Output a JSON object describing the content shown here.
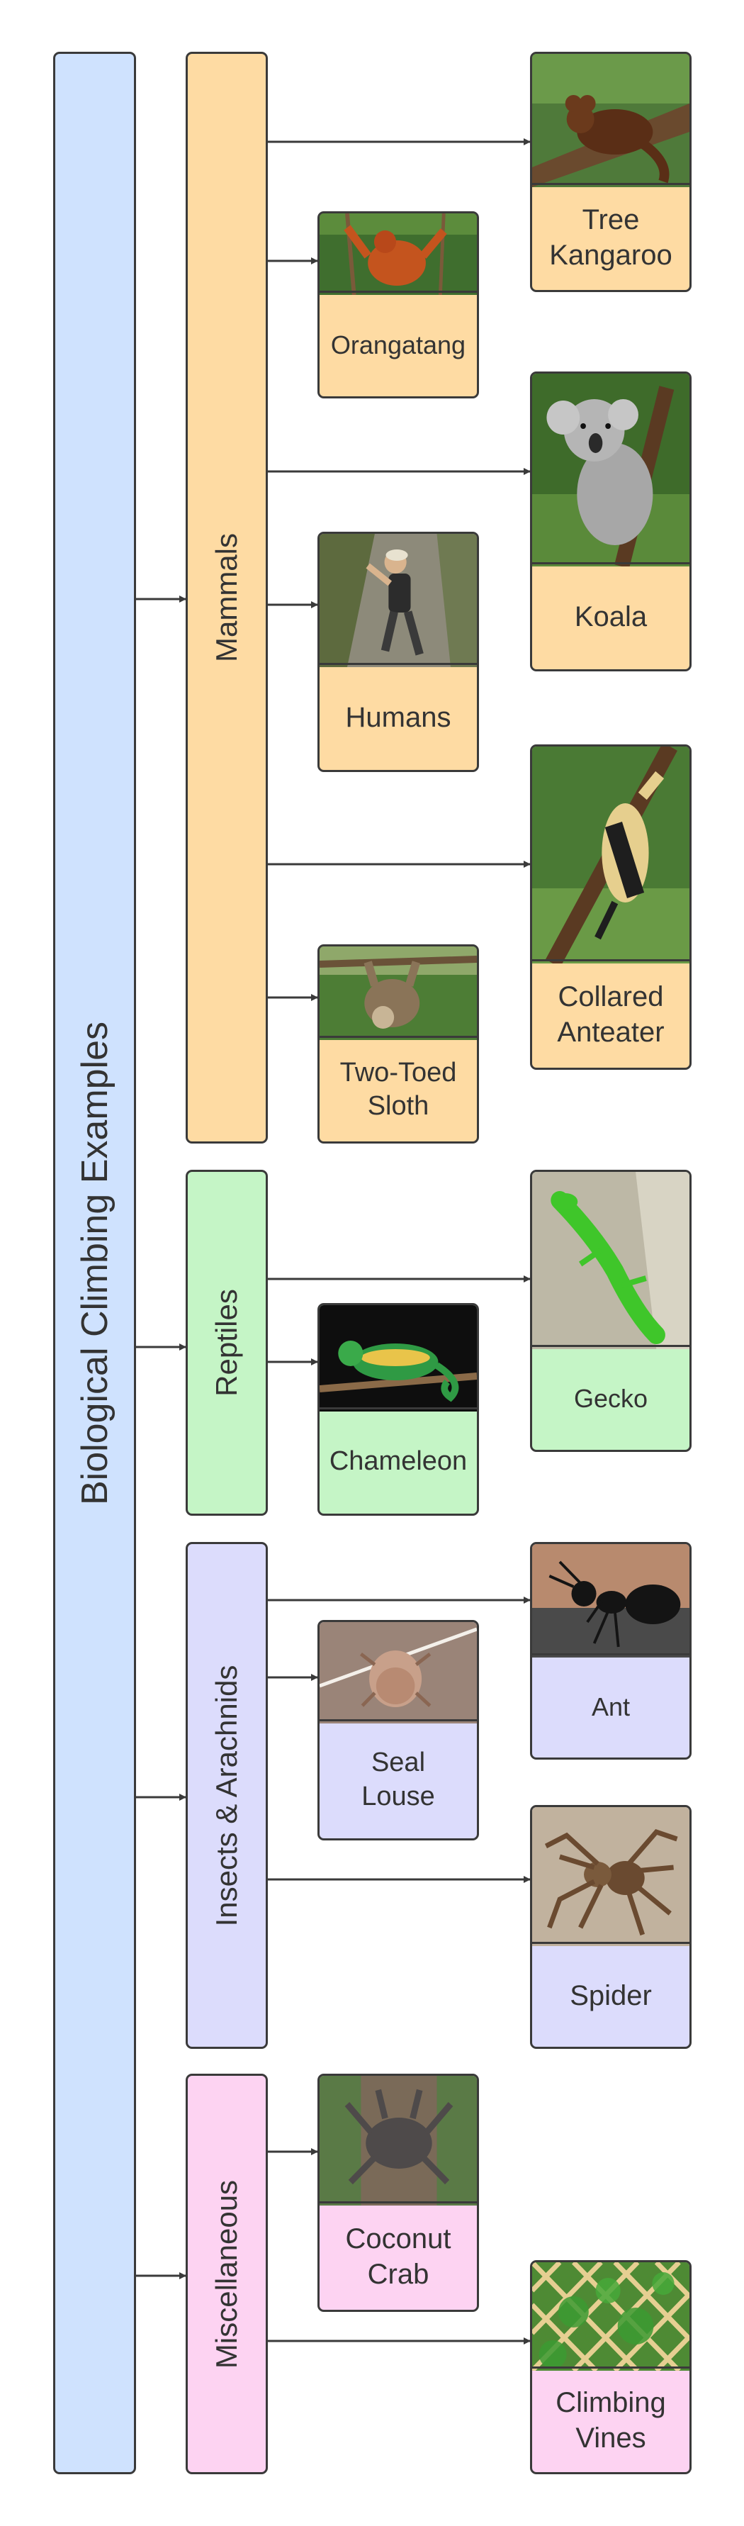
{
  "title": "Biological Climbing Examples",
  "colors": {
    "root": "#cfe2fe",
    "mammals": "#fedba3",
    "reptiles": "#c5f5c6",
    "insects": "#dcdcfc",
    "misc": "#fdd3f2",
    "line": "#3a3a3a"
  },
  "categories": [
    {
      "key": "mammals",
      "label": "Mammals"
    },
    {
      "key": "reptiles",
      "label": "Reptiles"
    },
    {
      "key": "insects",
      "label": "Insects & Arachnids"
    },
    {
      "key": "misc",
      "label": "Miscellaneous"
    }
  ],
  "animals": {
    "tree_kangaroo": {
      "label": "Tree\nKangaroo",
      "icon": "tree-kangaroo-photo"
    },
    "orangatang": {
      "label": "Orangatang",
      "icon": "orangutan-photo"
    },
    "koala": {
      "label": "Koala",
      "icon": "koala-photo"
    },
    "humans": {
      "label": "Humans",
      "icon": "human-climber-photo"
    },
    "collared_anteater": {
      "label": "Collared\nAnteater",
      "icon": "collared-anteater-photo"
    },
    "two_toed_sloth": {
      "label": "Two-Toed\nSloth",
      "icon": "sloth-photo"
    },
    "gecko": {
      "label": "Gecko",
      "icon": "gecko-photo"
    },
    "chameleon": {
      "label": "Chameleon",
      "icon": "chameleon-photo"
    },
    "ant": {
      "label": "Ant",
      "icon": "ant-photo"
    },
    "seal_louse": {
      "label": "Seal\nLouse",
      "icon": "seal-louse-photo"
    },
    "spider": {
      "label": "Spider",
      "icon": "spider-photo"
    },
    "coconut_crab": {
      "label": "Coconut\nCrab",
      "icon": "coconut-crab-photo"
    },
    "climbing_vines": {
      "label": "Climbing\nVines",
      "icon": "climbing-vines-photo"
    }
  }
}
